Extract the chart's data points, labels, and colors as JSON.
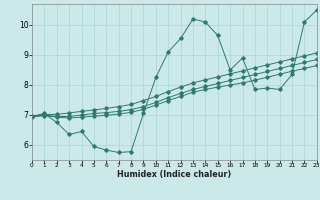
{
  "xlabel": "Humidex (Indice chaleur)",
  "bg_color": "#cce9e9",
  "grid_color": "#aad4d4",
  "line_color": "#2d7a6e",
  "xlim": [
    0,
    23
  ],
  "ylim": [
    5.5,
    10.7
  ],
  "xticks": [
    0,
    1,
    2,
    3,
    4,
    5,
    6,
    7,
    8,
    9,
    10,
    11,
    12,
    13,
    14,
    15,
    16,
    17,
    18,
    19,
    20,
    21,
    22,
    23
  ],
  "yticks": [
    6,
    7,
    8,
    9,
    10
  ],
  "line1_x": [
    0,
    1,
    2,
    3,
    4,
    5,
    6,
    7,
    8,
    9,
    10,
    11,
    12,
    13,
    14,
    15,
    16,
    17,
    18,
    19,
    20,
    21,
    22,
    23
  ],
  "line1_y": [
    6.95,
    7.05,
    6.75,
    6.35,
    6.45,
    5.95,
    5.83,
    5.75,
    5.78,
    7.05,
    8.25,
    9.1,
    9.55,
    10.2,
    10.1,
    9.65,
    8.5,
    8.9,
    7.85,
    7.9,
    7.85,
    8.35,
    10.1,
    10.5
  ],
  "line2_x": [
    0,
    1,
    2,
    3,
    4,
    5,
    6,
    7,
    8,
    9,
    10,
    11,
    12,
    13,
    14,
    15,
    16,
    17,
    18,
    19,
    20,
    21,
    22,
    23
  ],
  "line2_y": [
    6.95,
    7.0,
    6.95,
    6.95,
    7.0,
    7.05,
    7.08,
    7.12,
    7.18,
    7.28,
    7.42,
    7.58,
    7.72,
    7.85,
    7.95,
    8.05,
    8.15,
    8.25,
    8.35,
    8.45,
    8.55,
    8.65,
    8.75,
    8.85
  ],
  "line3_x": [
    0,
    1,
    2,
    3,
    4,
    5,
    6,
    7,
    8,
    9,
    10,
    11,
    12,
    13,
    14,
    15,
    16,
    17,
    18,
    19,
    20,
    21,
    22,
    23
  ],
  "line3_y": [
    6.93,
    6.98,
    6.93,
    6.9,
    6.93,
    6.96,
    6.99,
    7.03,
    7.09,
    7.19,
    7.33,
    7.48,
    7.62,
    7.76,
    7.85,
    7.93,
    8.0,
    8.07,
    8.16,
    8.26,
    8.36,
    8.46,
    8.55,
    8.65
  ],
  "line4_x": [
    0,
    1,
    2,
    3,
    4,
    5,
    6,
    7,
    8,
    9,
    10,
    11,
    12,
    13,
    14,
    15,
    16,
    17,
    18,
    19,
    20,
    21,
    22,
    23
  ],
  "line4_y": [
    6.97,
    7.02,
    7.02,
    7.07,
    7.12,
    7.17,
    7.22,
    7.28,
    7.35,
    7.48,
    7.62,
    7.78,
    7.93,
    8.07,
    8.17,
    8.27,
    8.37,
    8.47,
    8.57,
    8.67,
    8.77,
    8.87,
    8.97,
    9.07
  ]
}
